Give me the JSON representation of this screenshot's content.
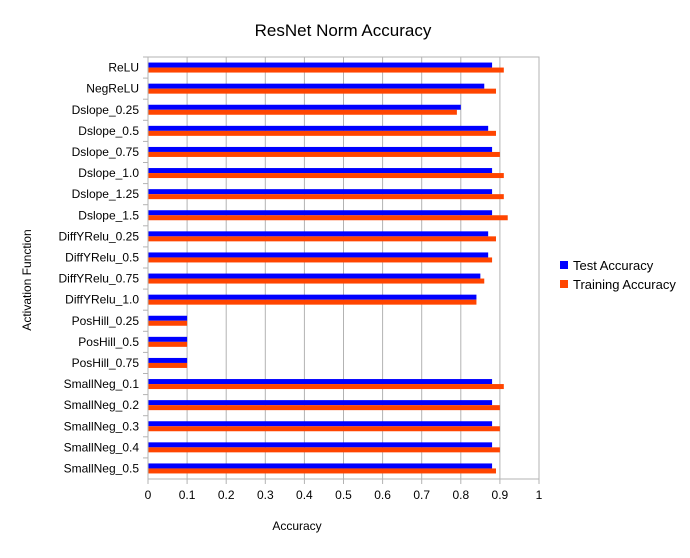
{
  "chart_data": {
    "type": "bar",
    "orientation": "horizontal",
    "title": "ResNet Norm Accuracy",
    "xlabel": "Accuracy",
    "ylabel": "Activation Function",
    "xlim": [
      0,
      1
    ],
    "xticks": [
      "0",
      "0.1",
      "0.2",
      "0.3",
      "0.4",
      "0.5",
      "0.6",
      "0.7",
      "0.8",
      "0.9",
      "1"
    ],
    "grid": true,
    "legend_position": "right",
    "categories": [
      "ReLU",
      "NegReLU",
      "Dslope_0.25",
      "Dslope_0.5",
      "Dslope_0.75",
      "Dslope_1.0",
      "Dslope_1.25",
      "Dslope_1.5",
      "DiffYRelu_0.25",
      "DiffYRelu_0.5",
      "DiffYRelu_0.75",
      "DiffYRelu_1.0",
      "PosHill_0.25",
      "PosHill_0.5",
      "PosHill_0.75",
      "SmallNeg_0.1",
      "SmallNeg_0.2",
      "SmallNeg_0.3",
      "SmallNeg_0.4",
      "SmallNeg_0.5"
    ],
    "series": [
      {
        "name": "Test Accuracy",
        "color": "#0000ff",
        "values": [
          0.88,
          0.86,
          0.8,
          0.87,
          0.88,
          0.88,
          0.88,
          0.88,
          0.87,
          0.87,
          0.85,
          0.84,
          0.1,
          0.1,
          0.1,
          0.88,
          0.88,
          0.88,
          0.88,
          0.88
        ]
      },
      {
        "name": "Training Accuracy",
        "color": "#ff4500",
        "values": [
          0.91,
          0.89,
          0.79,
          0.89,
          0.9,
          0.91,
          0.91,
          0.92,
          0.89,
          0.88,
          0.86,
          0.84,
          0.1,
          0.1,
          0.1,
          0.91,
          0.9,
          0.9,
          0.9,
          0.89
        ]
      }
    ]
  }
}
